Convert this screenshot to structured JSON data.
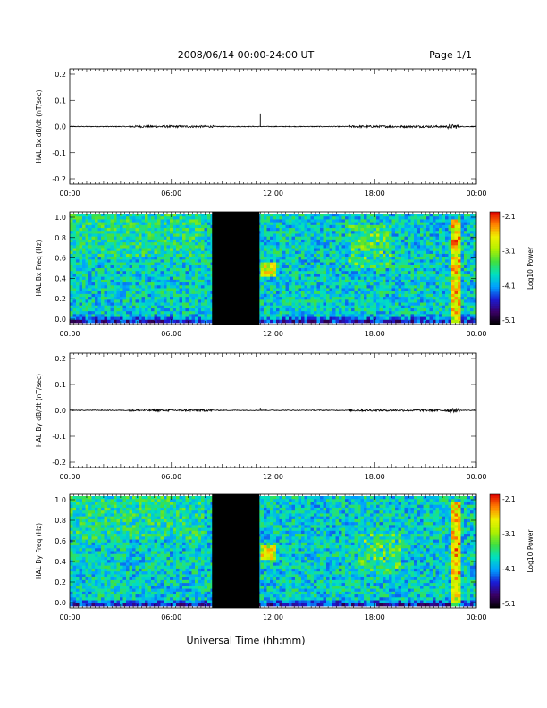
{
  "header": {
    "title": "2008/06/14  00:00-24:00 UT",
    "page": "Page 1/1"
  },
  "xaxis": {
    "label": "Universal Time (hh:mm)",
    "ticks": [
      "00:00",
      "06:00",
      "12:00",
      "18:00",
      "00:00"
    ],
    "range_hours": [
      0,
      24
    ]
  },
  "colors": {
    "spectrogram_scale": [
      "#000000",
      "#3a0066",
      "#1b1bd4",
      "#00a0ff",
      "#00e0c0",
      "#40e040",
      "#b0f000",
      "#f0f000",
      "#ff8000",
      "#e00000"
    ],
    "data_gap": "#000000",
    "trace": "#000000"
  },
  "chart_data": [
    {
      "type": "line",
      "ylabel": "HAL Bx dB/dt (nT/sec)",
      "xlim": [
        0,
        24
      ],
      "ylim": [
        -0.2,
        0.2
      ],
      "yticks": [
        "0.2",
        "0.1",
        "0.0",
        "-0.1",
        "-0.2"
      ],
      "baseline": 0.0,
      "spike": {
        "x": 11.25,
        "y": 0.05
      },
      "active_intervals": [
        [
          3.5,
          8.5
        ],
        [
          16.5,
          22.5
        ]
      ],
      "strong_activity": [
        22.3,
        23.0
      ]
    },
    {
      "type": "heatmap",
      "ylabel": "HAL Bx Freq (Hz)",
      "xlim": [
        0,
        24
      ],
      "ylim": [
        0.0,
        1.0
      ],
      "yticks": [
        "1.0",
        "0.8",
        "0.6",
        "0.4",
        "0.2",
        "0.0"
      ],
      "data_gap": [
        8.4,
        11.2
      ],
      "pc1_band": {
        "x": [
          16.5,
          19.0
        ],
        "freq": [
          0.5,
          0.9
        ]
      },
      "burst": {
        "x": [
          22.6,
          23.0
        ],
        "freq": [
          0.0,
          0.95
        ]
      },
      "colorbar": {
        "label": "Log10 Power",
        "ticks": [
          "-2.1",
          "-3.1",
          "-4.1",
          "-5.1"
        ],
        "range": [
          -5.1,
          -2.1
        ]
      }
    },
    {
      "type": "line",
      "ylabel": "HAL By dB/dt (nT/sec)",
      "xlim": [
        0,
        24
      ],
      "ylim": [
        -0.2,
        0.2
      ],
      "yticks": [
        "0.2",
        "0.1",
        "0.0",
        "-0.1",
        "-0.2"
      ],
      "baseline": 0.0,
      "spike": {
        "x": 11.25,
        "y": 0.01
      },
      "active_intervals": [
        [
          3.5,
          8.5
        ],
        [
          16.5,
          22.5
        ]
      ],
      "strong_activity": [
        22.3,
        23.0
      ]
    },
    {
      "type": "heatmap",
      "ylabel": "HAL By Freq (Hz)",
      "xlim": [
        0,
        24
      ],
      "ylim": [
        0.0,
        1.0
      ],
      "yticks": [
        "1.0",
        "0.8",
        "0.6",
        "0.4",
        "0.2",
        "0.0"
      ],
      "data_gap": [
        8.4,
        11.2
      ],
      "pc1_band": {
        "x": [
          17.0,
          19.5
        ],
        "freq": [
          0.3,
          0.65
        ]
      },
      "burst": {
        "x": [
          22.6,
          23.0
        ],
        "freq": [
          0.0,
          0.95
        ]
      },
      "colorbar": {
        "label": "Log10 Power",
        "ticks": [
          "-2.1",
          "-3.1",
          "-4.1",
          "-5.1"
        ],
        "range": [
          -5.1,
          -2.1
        ]
      }
    }
  ]
}
